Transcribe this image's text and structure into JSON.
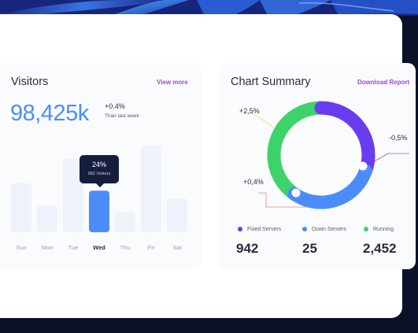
{
  "colors": {
    "primary_blue": "#4b8df8",
    "purple": "#6a3cf0",
    "green": "#3ed36a",
    "bar_light": "#eef3fb",
    "link_purple": "#9b4cd9",
    "tooltip_bg": "#161d3d"
  },
  "visitors": {
    "title": "Visitors",
    "view_more": "View more",
    "total": "98,425k",
    "change": "+0.4%",
    "change_sub": "Than last week",
    "tooltip": {
      "percent": "24%",
      "label": "982 Visitors"
    },
    "days": [
      {
        "label": "Sun",
        "value": 0.52,
        "active": false
      },
      {
        "label": "Mon",
        "value": 0.28,
        "active": false
      },
      {
        "label": "Tue",
        "value": 0.78,
        "active": false
      },
      {
        "label": "Wed",
        "value": 0.44,
        "active": true
      },
      {
        "label": "Thu",
        "value": 0.22,
        "active": false
      },
      {
        "label": "Fri",
        "value": 0.92,
        "active": false
      },
      {
        "label": "Sat",
        "value": 0.36,
        "active": false
      }
    ]
  },
  "summary": {
    "title": "Chart Summary",
    "download": "Download Report",
    "annotations": {
      "top_left": "+2,5%",
      "right": "-0,5%",
      "bottom_left": "+0,4%"
    },
    "legend": [
      {
        "label": "Fixed Servers",
        "value": "942",
        "color": "#6a3cf0"
      },
      {
        "label": "Down Servers",
        "value": "25",
        "color": "#4b8df8"
      },
      {
        "label": "Running",
        "value": "2,452",
        "color": "#3ed36a"
      }
    ]
  }
}
